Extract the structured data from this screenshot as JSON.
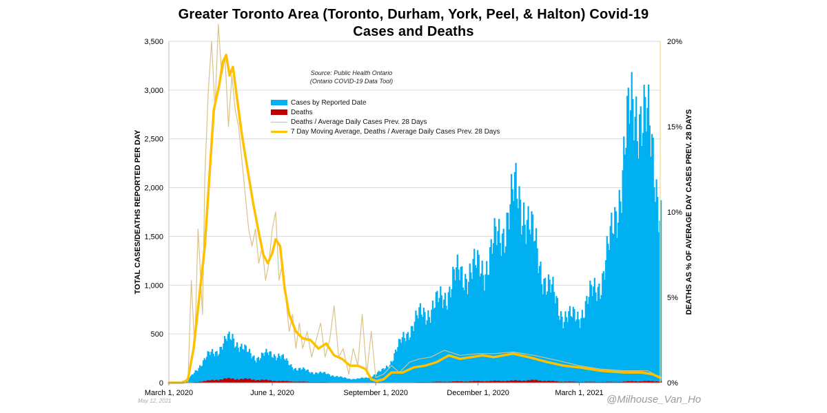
{
  "chart_data": {
    "type": "bar",
    "title": "Greater Toronto Area (Toronto, Durham, York, Peel, & Halton) Covid-19",
    "subtitle": "Cases and Deaths",
    "ylabel": "TOTAL CASES/DEATHS REPORTED PER DAY",
    "y2label": "DEATHS AS % OF AVERAGE DAY CASES PREV. 28 DAYS",
    "ylim": [
      0,
      3500
    ],
    "y2lim": [
      0,
      20
    ],
    "yticks": [
      "0",
      "500",
      "1,000",
      "1,500",
      "2,000",
      "2,500",
      "3,000",
      "3,500"
    ],
    "y2ticks": [
      "0%",
      "5%",
      "10%",
      "15%",
      "20%"
    ],
    "xlim": [
      "2020-03-01",
      "2021-05-12"
    ],
    "xticks": [
      {
        "date": "2020-03-01",
        "label": "March 1, 2020"
      },
      {
        "date": "2020-06-01",
        "label": "June 1, 2020"
      },
      {
        "date": "2020-09-01",
        "label": "September 1, 2020"
      },
      {
        "date": "2020-12-01",
        "label": "December 1, 2020"
      },
      {
        "date": "2021-03-01",
        "label": "March 1, 2021"
      }
    ],
    "grid": "horizontal",
    "source": [
      "Source: Public Health Ontario",
      "(Ontario COVID-19 Data Tool)"
    ],
    "legend_position": "top-center",
    "series": [
      {
        "name": "Cases by Reported Date",
        "kind": "bar",
        "axis": "left",
        "color": "#00B0F0",
        "points": [
          [
            "2020-03-01",
            0
          ],
          [
            "2020-03-12",
            10
          ],
          [
            "2020-03-20",
            60
          ],
          [
            "2020-03-28",
            180
          ],
          [
            "2020-04-05",
            280
          ],
          [
            "2020-04-12",
            330
          ],
          [
            "2020-04-20",
            420
          ],
          [
            "2020-04-26",
            460
          ],
          [
            "2020-05-03",
            380
          ],
          [
            "2020-05-10",
            300
          ],
          [
            "2020-05-17",
            260
          ],
          [
            "2020-05-24",
            280
          ],
          [
            "2020-05-31",
            300
          ],
          [
            "2020-06-07",
            280
          ],
          [
            "2020-06-14",
            200
          ],
          [
            "2020-06-21",
            150
          ],
          [
            "2020-06-28",
            130
          ],
          [
            "2020-07-05",
            110
          ],
          [
            "2020-07-12",
            100
          ],
          [
            "2020-07-19",
            90
          ],
          [
            "2020-07-26",
            70
          ],
          [
            "2020-08-02",
            50
          ],
          [
            "2020-08-09",
            40
          ],
          [
            "2020-08-16",
            40
          ],
          [
            "2020-08-23",
            50
          ],
          [
            "2020-08-30",
            80
          ],
          [
            "2020-09-06",
            120
          ],
          [
            "2020-09-13",
            200
          ],
          [
            "2020-09-20",
            350
          ],
          [
            "2020-09-27",
            500
          ],
          [
            "2020-10-04",
            600
          ],
          [
            "2020-10-11",
            700
          ],
          [
            "2020-10-18",
            750
          ],
          [
            "2020-10-25",
            800
          ],
          [
            "2020-11-01",
            900
          ],
          [
            "2020-11-08",
            1050
          ],
          [
            "2020-11-15",
            1100
          ],
          [
            "2020-11-22",
            1150
          ],
          [
            "2020-11-29",
            1150
          ],
          [
            "2020-12-06",
            1200
          ],
          [
            "2020-12-13",
            1350
          ],
          [
            "2020-12-20",
            1500
          ],
          [
            "2020-12-27",
            1750
          ],
          [
            "2021-01-03",
            1900
          ],
          [
            "2021-01-10",
            1850
          ],
          [
            "2021-01-17",
            1500
          ],
          [
            "2021-01-24",
            1250
          ],
          [
            "2021-01-31",
            1000
          ],
          [
            "2021-02-07",
            850
          ],
          [
            "2021-02-14",
            700
          ],
          [
            "2021-02-21",
            650
          ],
          [
            "2021-02-28",
            700
          ],
          [
            "2021-03-07",
            800
          ],
          [
            "2021-03-14",
            950
          ],
          [
            "2021-03-21",
            1100
          ],
          [
            "2021-03-28",
            1400
          ],
          [
            "2021-04-04",
            1900
          ],
          [
            "2021-04-11",
            2450
          ],
          [
            "2021-04-18",
            2850
          ],
          [
            "2021-04-22",
            2900
          ],
          [
            "2021-04-29",
            2600
          ],
          [
            "2021-05-06",
            2300
          ],
          [
            "2021-05-12",
            1750
          ]
        ]
      },
      {
        "name": "Deaths",
        "kind": "bar",
        "axis": "left",
        "color": "#C00000",
        "points": [
          [
            "2020-03-01",
            0
          ],
          [
            "2020-03-20",
            2
          ],
          [
            "2020-04-01",
            15
          ],
          [
            "2020-04-15",
            35
          ],
          [
            "2020-04-25",
            40
          ],
          [
            "2020-05-10",
            35
          ],
          [
            "2020-05-25",
            25
          ],
          [
            "2020-06-10",
            15
          ],
          [
            "2020-07-01",
            8
          ],
          [
            "2020-08-01",
            3
          ],
          [
            "2020-09-01",
            1
          ],
          [
            "2020-10-01",
            4
          ],
          [
            "2020-11-01",
            10
          ],
          [
            "2020-12-01",
            15
          ],
          [
            "2021-01-01",
            20
          ],
          [
            "2021-01-20",
            25
          ],
          [
            "2021-02-10",
            12
          ],
          [
            "2021-03-01",
            8
          ],
          [
            "2021-04-01",
            8
          ],
          [
            "2021-04-20",
            15
          ],
          [
            "2021-05-12",
            15
          ]
        ]
      },
      {
        "name": "Deaths / Average Daily Cases Prev. 28 Days",
        "kind": "line",
        "axis": "right",
        "color": "#D9C28A",
        "points": [
          [
            "2020-03-01",
            0
          ],
          [
            "2020-03-18",
            0
          ],
          [
            "2020-03-21",
            6
          ],
          [
            "2020-03-24",
            2
          ],
          [
            "2020-03-27",
            9
          ],
          [
            "2020-03-31",
            4
          ],
          [
            "2020-04-02",
            12
          ],
          [
            "2020-04-05",
            17
          ],
          [
            "2020-04-08",
            20
          ],
          [
            "2020-04-11",
            16
          ],
          [
            "2020-04-14",
            21
          ],
          [
            "2020-04-17",
            18
          ],
          [
            "2020-04-20",
            19
          ],
          [
            "2020-04-23",
            15
          ],
          [
            "2020-04-26",
            18
          ],
          [
            "2020-04-29",
            16
          ],
          [
            "2020-05-02",
            15
          ],
          [
            "2020-05-05",
            13
          ],
          [
            "2020-05-08",
            11
          ],
          [
            "2020-05-11",
            9
          ],
          [
            "2020-05-14",
            8
          ],
          [
            "2020-05-17",
            9
          ],
          [
            "2020-05-20",
            7
          ],
          [
            "2020-05-23",
            8
          ],
          [
            "2020-05-26",
            6
          ],
          [
            "2020-05-29",
            7
          ],
          [
            "2020-06-01",
            9
          ],
          [
            "2020-06-04",
            10
          ],
          [
            "2020-06-07",
            6
          ],
          [
            "2020-06-10",
            7
          ],
          [
            "2020-06-13",
            5
          ],
          [
            "2020-06-16",
            3
          ],
          [
            "2020-06-19",
            4
          ],
          [
            "2020-06-22",
            2
          ],
          [
            "2020-06-25",
            3.5
          ],
          [
            "2020-06-28",
            2
          ],
          [
            "2020-07-02",
            3
          ],
          [
            "2020-07-06",
            1.5
          ],
          [
            "2020-07-10",
            2.5
          ],
          [
            "2020-07-14",
            3.5
          ],
          [
            "2020-07-18",
            1.5
          ],
          [
            "2020-07-22",
            2.5
          ],
          [
            "2020-07-26",
            4.5
          ],
          [
            "2020-07-30",
            1.5
          ],
          [
            "2020-08-03",
            2
          ],
          [
            "2020-08-08",
            0.5
          ],
          [
            "2020-08-12",
            2
          ],
          [
            "2020-08-16",
            1
          ],
          [
            "2020-08-20",
            4
          ],
          [
            "2020-08-24",
            0.5
          ],
          [
            "2020-08-28",
            3
          ],
          [
            "2020-09-01",
            0.3
          ],
          [
            "2020-09-08",
            0.5
          ],
          [
            "2020-09-15",
            1
          ],
          [
            "2020-09-22",
            0.6
          ],
          [
            "2020-10-01",
            1.2
          ],
          [
            "2020-10-10",
            1.4
          ],
          [
            "2020-10-20",
            1.5
          ],
          [
            "2020-11-01",
            1.9
          ],
          [
            "2020-11-15",
            1.6
          ],
          [
            "2020-12-01",
            1.7
          ],
          [
            "2020-12-15",
            1.7
          ],
          [
            "2021-01-01",
            1.8
          ],
          [
            "2021-01-20",
            1.6
          ],
          [
            "2021-02-10",
            1.3
          ],
          [
            "2021-03-01",
            1.0
          ],
          [
            "2021-03-20",
            0.8
          ],
          [
            "2021-04-10",
            0.7
          ],
          [
            "2021-05-01",
            0.7
          ],
          [
            "2021-05-12",
            0.3
          ]
        ]
      },
      {
        "name": "7 Day Moving Average, Deaths / Average Daily Cases Prev. 28 Days",
        "kind": "line",
        "axis": "right",
        "color": "#FFC000",
        "points": [
          [
            "2020-03-01",
            0
          ],
          [
            "2020-03-14",
            0
          ],
          [
            "2020-03-18",
            0.2
          ],
          [
            "2020-03-23",
            2
          ],
          [
            "2020-03-28",
            5
          ],
          [
            "2020-04-02",
            8
          ],
          [
            "2020-04-06",
            12
          ],
          [
            "2020-04-10",
            16
          ],
          [
            "2020-04-15",
            17.5
          ],
          [
            "2020-04-18",
            18.8
          ],
          [
            "2020-04-21",
            19.2
          ],
          [
            "2020-04-24",
            18
          ],
          [
            "2020-04-27",
            18.5
          ],
          [
            "2020-05-01",
            16.5
          ],
          [
            "2020-05-05",
            14.5
          ],
          [
            "2020-05-10",
            12.5
          ],
          [
            "2020-05-15",
            10.5
          ],
          [
            "2020-05-20",
            8.8
          ],
          [
            "2020-05-24",
            7.5
          ],
          [
            "2020-05-28",
            7.0
          ],
          [
            "2020-06-01",
            7.6
          ],
          [
            "2020-06-04",
            8.4
          ],
          [
            "2020-06-08",
            8.0
          ],
          [
            "2020-06-12",
            5.5
          ],
          [
            "2020-06-16",
            4.0
          ],
          [
            "2020-06-22",
            3.0
          ],
          [
            "2020-06-28",
            2.6
          ],
          [
            "2020-07-05",
            2.5
          ],
          [
            "2020-07-12",
            2.0
          ],
          [
            "2020-07-19",
            2.3
          ],
          [
            "2020-07-26",
            1.6
          ],
          [
            "2020-08-02",
            1.4
          ],
          [
            "2020-08-09",
            1.0
          ],
          [
            "2020-08-16",
            1.0
          ],
          [
            "2020-08-23",
            0.8
          ],
          [
            "2020-08-28",
            0.2
          ],
          [
            "2020-09-02",
            0.1
          ],
          [
            "2020-09-08",
            0.2
          ],
          [
            "2020-09-15",
            0.6
          ],
          [
            "2020-09-25",
            0.6
          ],
          [
            "2020-10-05",
            0.9
          ],
          [
            "2020-10-15",
            1.0
          ],
          [
            "2020-10-25",
            1.2
          ],
          [
            "2020-11-05",
            1.6
          ],
          [
            "2020-11-15",
            1.4
          ],
          [
            "2020-11-25",
            1.5
          ],
          [
            "2020-12-05",
            1.6
          ],
          [
            "2020-12-15",
            1.5
          ],
          [
            "2021-01-01",
            1.7
          ],
          [
            "2021-01-15",
            1.5
          ],
          [
            "2021-02-01",
            1.2
          ],
          [
            "2021-02-15",
            1.0
          ],
          [
            "2021-03-01",
            0.9
          ],
          [
            "2021-03-20",
            0.7
          ],
          [
            "2021-04-10",
            0.6
          ],
          [
            "2021-04-25",
            0.6
          ],
          [
            "2021-05-05",
            0.5
          ],
          [
            "2021-05-12",
            0.3
          ]
        ]
      }
    ]
  },
  "footer": {
    "date_note": "May 12, 2021",
    "credit": "@Milhouse_Van_Ho"
  }
}
